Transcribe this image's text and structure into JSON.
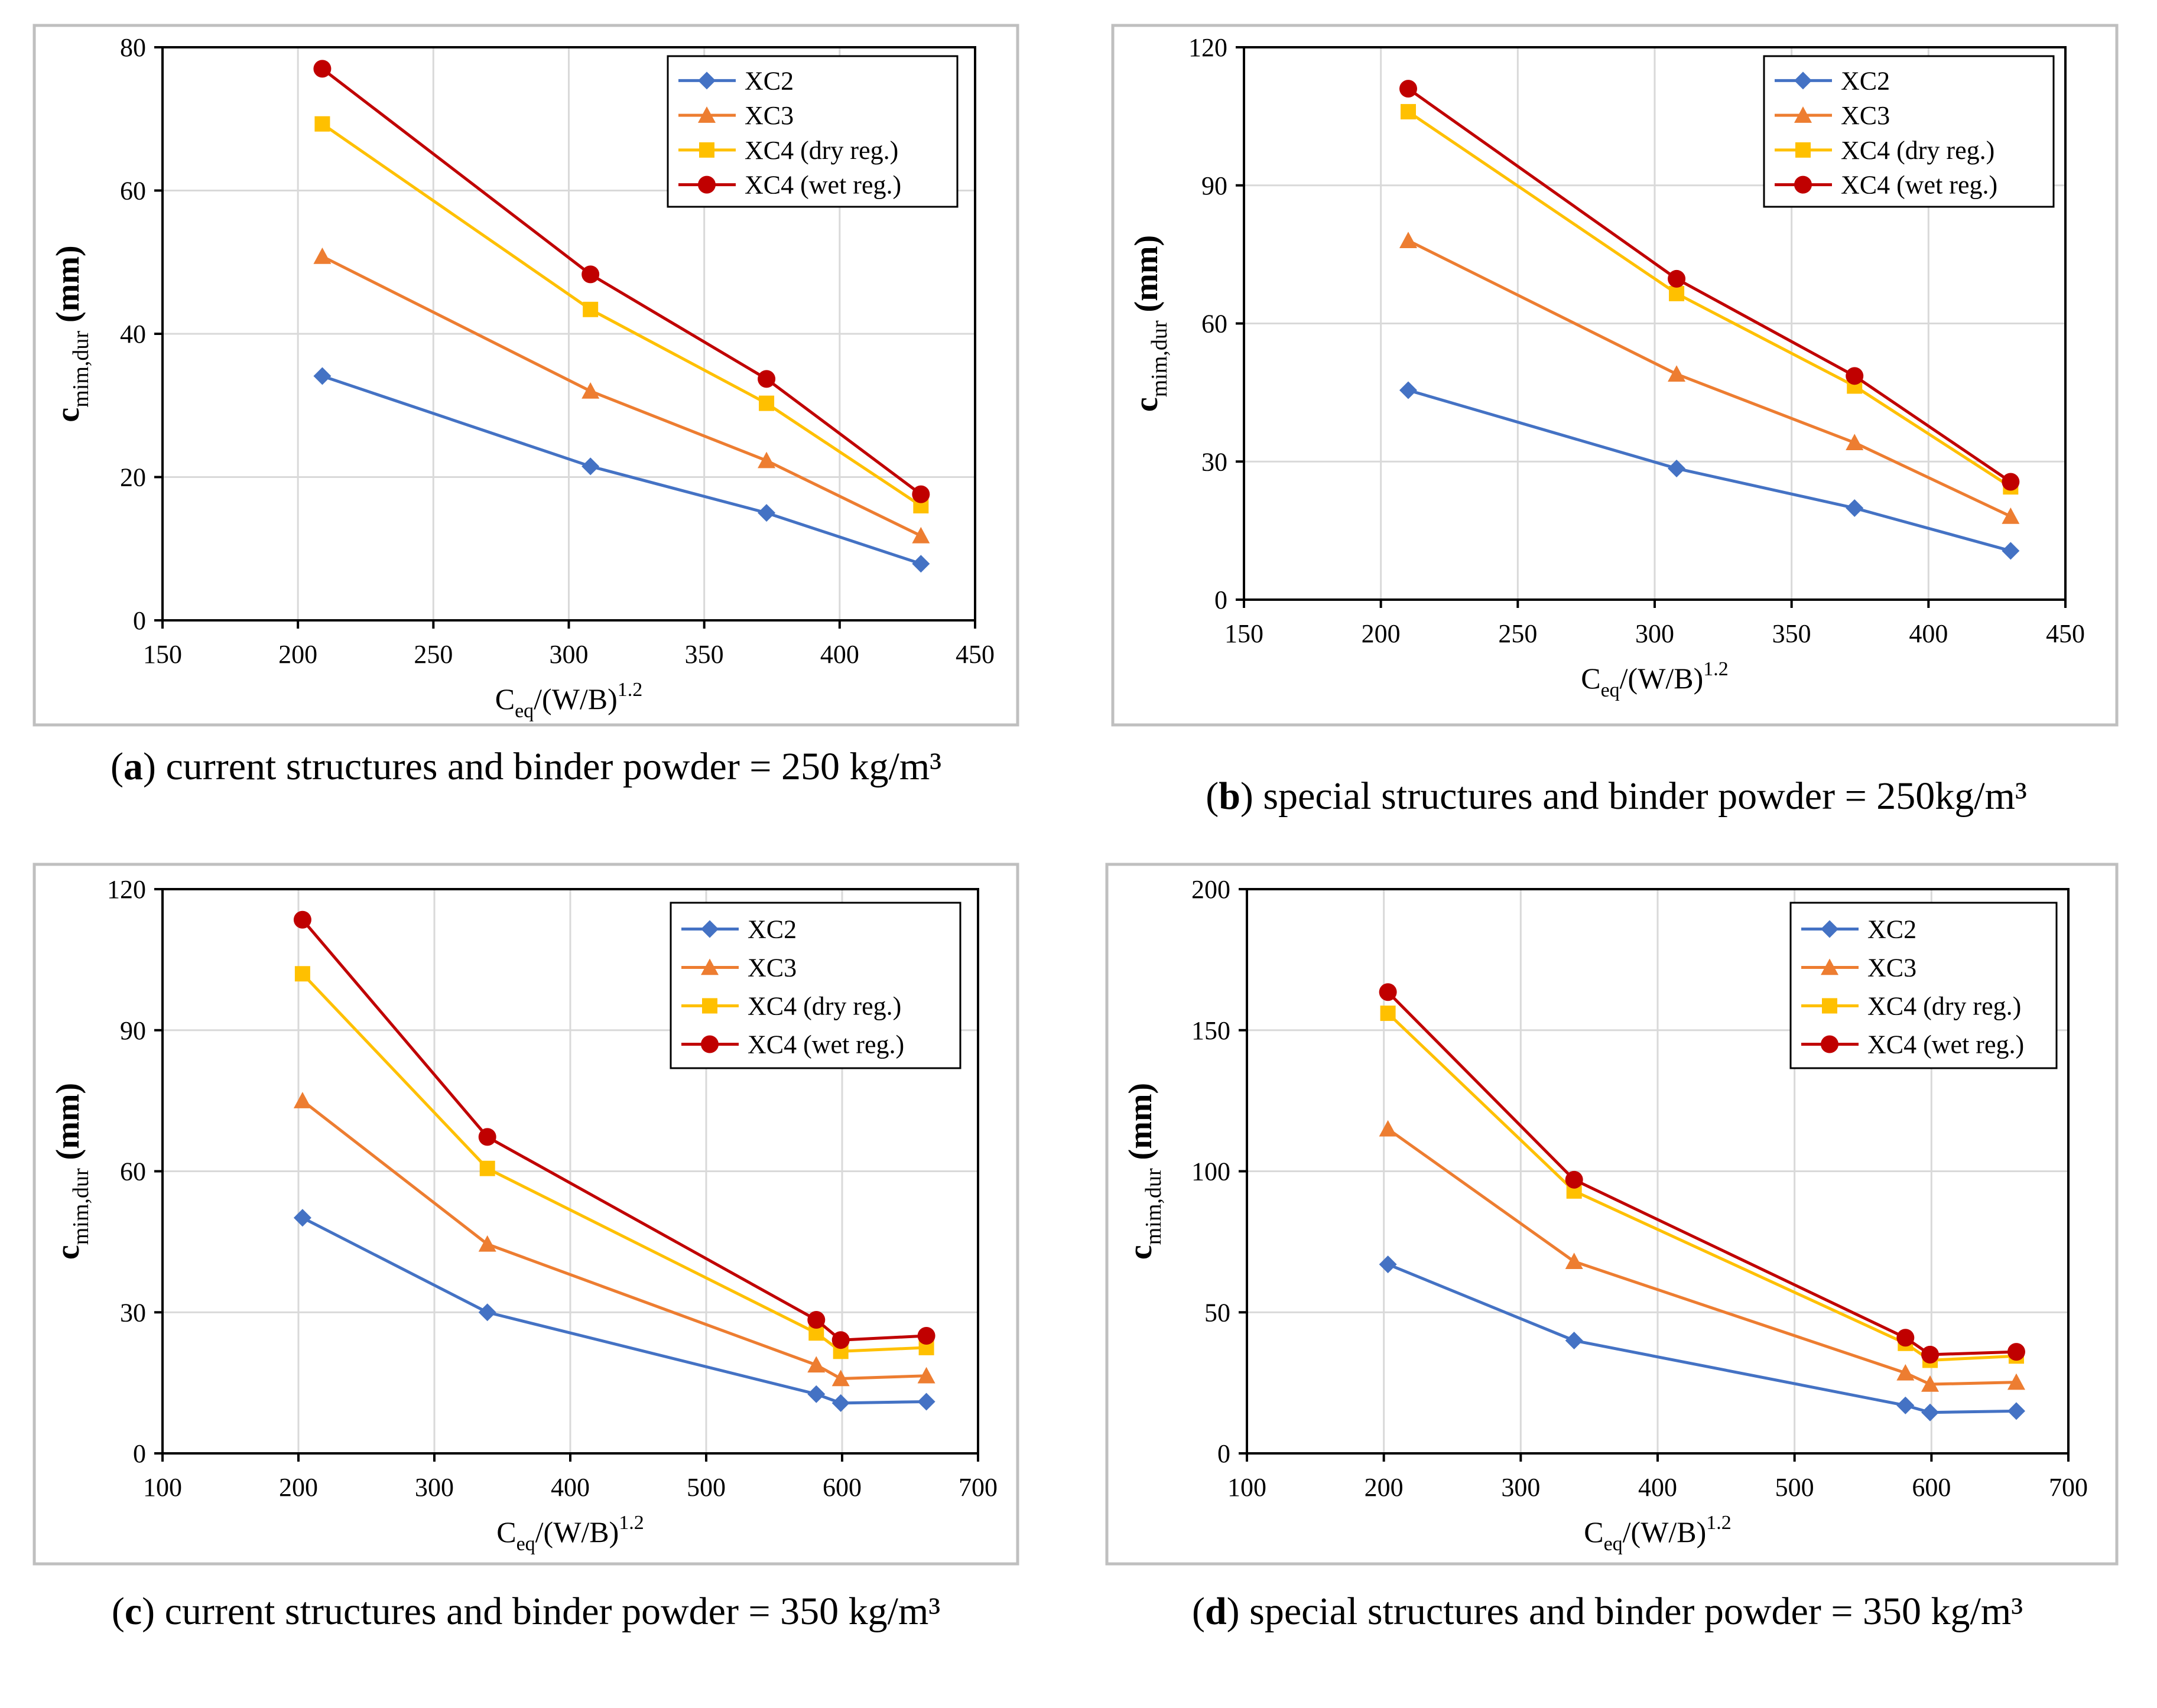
{
  "series_colors": {
    "XC2": "#4472C4",
    "XC3": "#ED7D31",
    "XC4 (dry reg.)": "#FFC000",
    "XC4 (wet reg.)": "#C00000"
  },
  "chart_data": [
    {
      "id": "a",
      "type": "line",
      "caption_label": "a",
      "caption_text": "current structures and binder powder = 250 kg/m³",
      "xlabel_main": "C",
      "xlabel_sub": "eq",
      "xlabel_tail": "/(W/B)",
      "xlabel_sup": "1.2",
      "ylabel_main": "c",
      "ylabel_sub": "mim,dur",
      "ylabel_tail": " (mm)",
      "xlim": [
        150,
        450
      ],
      "xticks": [
        150,
        200,
        250,
        300,
        350,
        400,
        450
      ],
      "ylim": [
        0,
        80
      ],
      "yticks": [
        0,
        20,
        40,
        60,
        80
      ],
      "grid": true,
      "legend": "top-right",
      "x": [
        209,
        308,
        373,
        430
      ],
      "series": [
        {
          "name": "XC2",
          "marker": "diamond",
          "values": [
            34.1,
            21.5,
            15.0,
            7.9
          ]
        },
        {
          "name": "XC3",
          "marker": "triangle",
          "values": [
            50.8,
            32.0,
            22.3,
            11.8
          ]
        },
        {
          "name": "XC4 (dry reg.)",
          "marker": "square",
          "values": [
            69.3,
            43.4,
            30.3,
            16.0
          ]
        },
        {
          "name": "XC4 (wet reg.)",
          "marker": "circle",
          "values": [
            77.0,
            48.3,
            33.7,
            17.6
          ]
        }
      ]
    },
    {
      "id": "b",
      "type": "line",
      "caption_label": "b",
      "caption_text": "special structures and binder powder = 250kg/m³",
      "xlabel_main": "C",
      "xlabel_sub": "eq",
      "xlabel_tail": "/(W/B)",
      "xlabel_sup": "1.2",
      "ylabel_main": "c",
      "ylabel_sub": "mim,dur",
      "ylabel_tail": " (mm)",
      "xlim": [
        150,
        450
      ],
      "xticks": [
        150,
        200,
        250,
        300,
        350,
        400,
        450
      ],
      "ylim": [
        0,
        120
      ],
      "yticks": [
        0,
        30,
        60,
        90,
        120
      ],
      "grid": true,
      "legend": "top-right",
      "x": [
        210,
        308,
        373,
        430
      ],
      "series": [
        {
          "name": "XC2",
          "marker": "diamond",
          "values": [
            45.5,
            28.5,
            19.9,
            10.6
          ]
        },
        {
          "name": "XC3",
          "marker": "triangle",
          "values": [
            78.0,
            49.0,
            34.1,
            18.1
          ]
        },
        {
          "name": "XC4 (dry reg.)",
          "marker": "square",
          "values": [
            106.0,
            66.5,
            46.4,
            24.5
          ]
        },
        {
          "name": "XC4 (wet reg.)",
          "marker": "circle",
          "values": [
            111.0,
            69.7,
            48.6,
            25.6
          ]
        }
      ]
    },
    {
      "id": "c",
      "type": "line",
      "caption_label": "c",
      "caption_text": "current structures and binder powder = 350 kg/m³",
      "xlabel_main": "C",
      "xlabel_sub": "eq",
      "xlabel_tail": "/(W/B)",
      "xlabel_sup": "1.2",
      "ylabel_main": "c",
      "ylabel_sub": "mim,dur",
      "ylabel_tail": " (mm)",
      "xlim": [
        100,
        700
      ],
      "xticks": [
        100,
        200,
        300,
        400,
        500,
        600,
        700
      ],
      "ylim": [
        0,
        120
      ],
      "yticks": [
        0,
        30,
        60,
        90,
        120
      ],
      "grid": true,
      "legend": "top-right",
      "x": [
        203,
        339,
        581,
        599,
        662
      ],
      "series": [
        {
          "name": "XC2",
          "marker": "diamond",
          "values": [
            50.1,
            30.0,
            12.6,
            10.7,
            11.0
          ]
        },
        {
          "name": "XC3",
          "marker": "triangle",
          "values": [
            75.0,
            44.5,
            18.8,
            15.9,
            16.5
          ]
        },
        {
          "name": "XC4 (dry reg.)",
          "marker": "square",
          "values": [
            102.0,
            60.6,
            25.6,
            21.7,
            22.5
          ]
        },
        {
          "name": "XC4 (wet reg.)",
          "marker": "circle",
          "values": [
            113.5,
            67.3,
            28.4,
            24.1,
            25.0
          ]
        }
      ]
    },
    {
      "id": "d",
      "type": "line",
      "caption_label": "d",
      "caption_text": "special structures and binder powder = 350 kg/m³",
      "xlabel_main": "C",
      "xlabel_sub": "eq",
      "xlabel_tail": "/(W/B)",
      "xlabel_sup": "1.2",
      "ylabel_main": "c",
      "ylabel_sub": "mim,dur",
      "ylabel_tail": " (mm)",
      "xlim": [
        100,
        700
      ],
      "xticks": [
        100,
        200,
        300,
        400,
        500,
        600,
        700
      ],
      "ylim": [
        0,
        200
      ],
      "yticks": [
        0,
        50,
        100,
        150,
        200
      ],
      "grid": true,
      "legend": "top-right",
      "x": [
        203,
        339,
        581,
        599,
        662
      ],
      "series": [
        {
          "name": "XC2",
          "marker": "diamond",
          "values": [
            67.0,
            40.0,
            17.0,
            14.5,
            15.0
          ]
        },
        {
          "name": "XC3",
          "marker": "triangle",
          "values": [
            115.0,
            68.0,
            28.5,
            24.5,
            25.2
          ]
        },
        {
          "name": "XC4 (dry reg.)",
          "marker": "square",
          "values": [
            156.0,
            93.0,
            39.0,
            33.0,
            34.5
          ]
        },
        {
          "name": "XC4 (wet reg.)",
          "marker": "circle",
          "values": [
            163.5,
            97.0,
            41.0,
            35.0,
            36.0
          ]
        }
      ]
    }
  ]
}
